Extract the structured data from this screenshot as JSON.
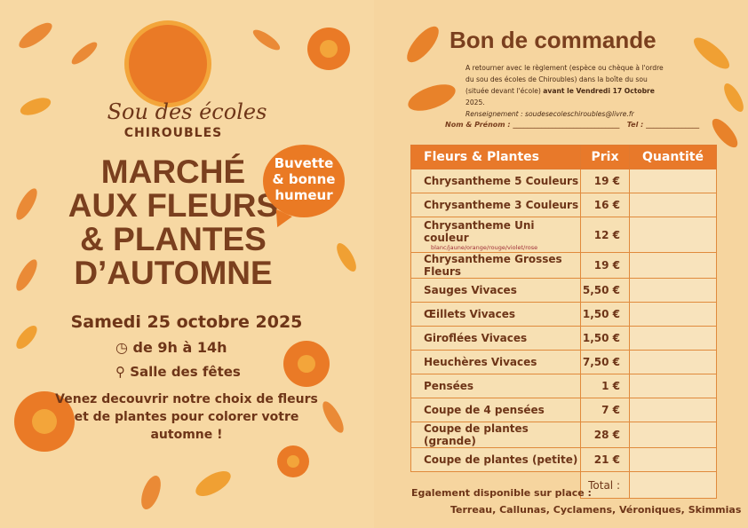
{
  "colors": {
    "background": "#f6d7a2",
    "accent": "#e8792a",
    "text": "#6e3518",
    "title": "#7a3f1e"
  },
  "flyer": {
    "logo": {
      "name": "Sou des écoles",
      "sub": "CHIROUBLES"
    },
    "title_lines": [
      "MARCHÉ",
      "AUX FLEURS",
      "& PLANTES",
      "D’AUTOMNE"
    ],
    "bubble": [
      "Buvette",
      "& bonne",
      "humeur"
    ],
    "date": "Samedi 25 octobre 2025",
    "hours": "de 9h à 14h",
    "place": "Salle des fêtes",
    "description": "Venez decouvrir notre choix de fleurs et de plantes pour colorer votre automne !"
  },
  "order_form": {
    "title": "Bon de commande",
    "info_1": "A retourner avec le règlement (espèce ou chèque à l'ordre du sou des écoles de Chiroubles) dans la boîte du sou (située devant l'école)",
    "info_bold": "avant le Vendredi 17 Octobre",
    "info_2": "2025.",
    "contact": "Renseignement : soudesecoleschiroubles@livre.fr",
    "name_label": "Nom  & Prénom : ______________________________",
    "tel_label": "Tel : _______________",
    "headers": [
      "Fleurs & Plantes",
      "Prix",
      "Quantité"
    ],
    "rows": [
      {
        "name": "Chrysantheme 5 Couleurs",
        "price": "19 €"
      },
      {
        "name": "Chrysantheme 3 Couleurs",
        "price": "16 €"
      },
      {
        "name": "Chrysantheme Uni couleur",
        "note": "blanc/jaune/orange/rouge/violet/rose",
        "price": "12 €"
      },
      {
        "name": "Chrysantheme Grosses Fleurs",
        "price": "19 €"
      },
      {
        "name": "Sauges Vivaces",
        "price": "5,50 €"
      },
      {
        "name": "Œillets Vivaces",
        "price": "1,50 €"
      },
      {
        "name": "Giroflées Vivaces",
        "price": "1,50 €"
      },
      {
        "name": "Heuchères Vivaces",
        "price": "7,50 €"
      },
      {
        "name": "Pensées",
        "price": "1 €"
      },
      {
        "name": "Coupe de 4 pensées",
        "price": "7 €"
      },
      {
        "name": "Coupe de plantes (grande)",
        "price": "28 €"
      },
      {
        "name": "Coupe de plantes (petite)",
        "price": "21 €"
      }
    ],
    "total_label": "Total :",
    "extra_label": "Egalement disponible sur place :",
    "extra_items": "Terreau, Callunas, Cyclamens, Véroniques, Skimmias"
  }
}
